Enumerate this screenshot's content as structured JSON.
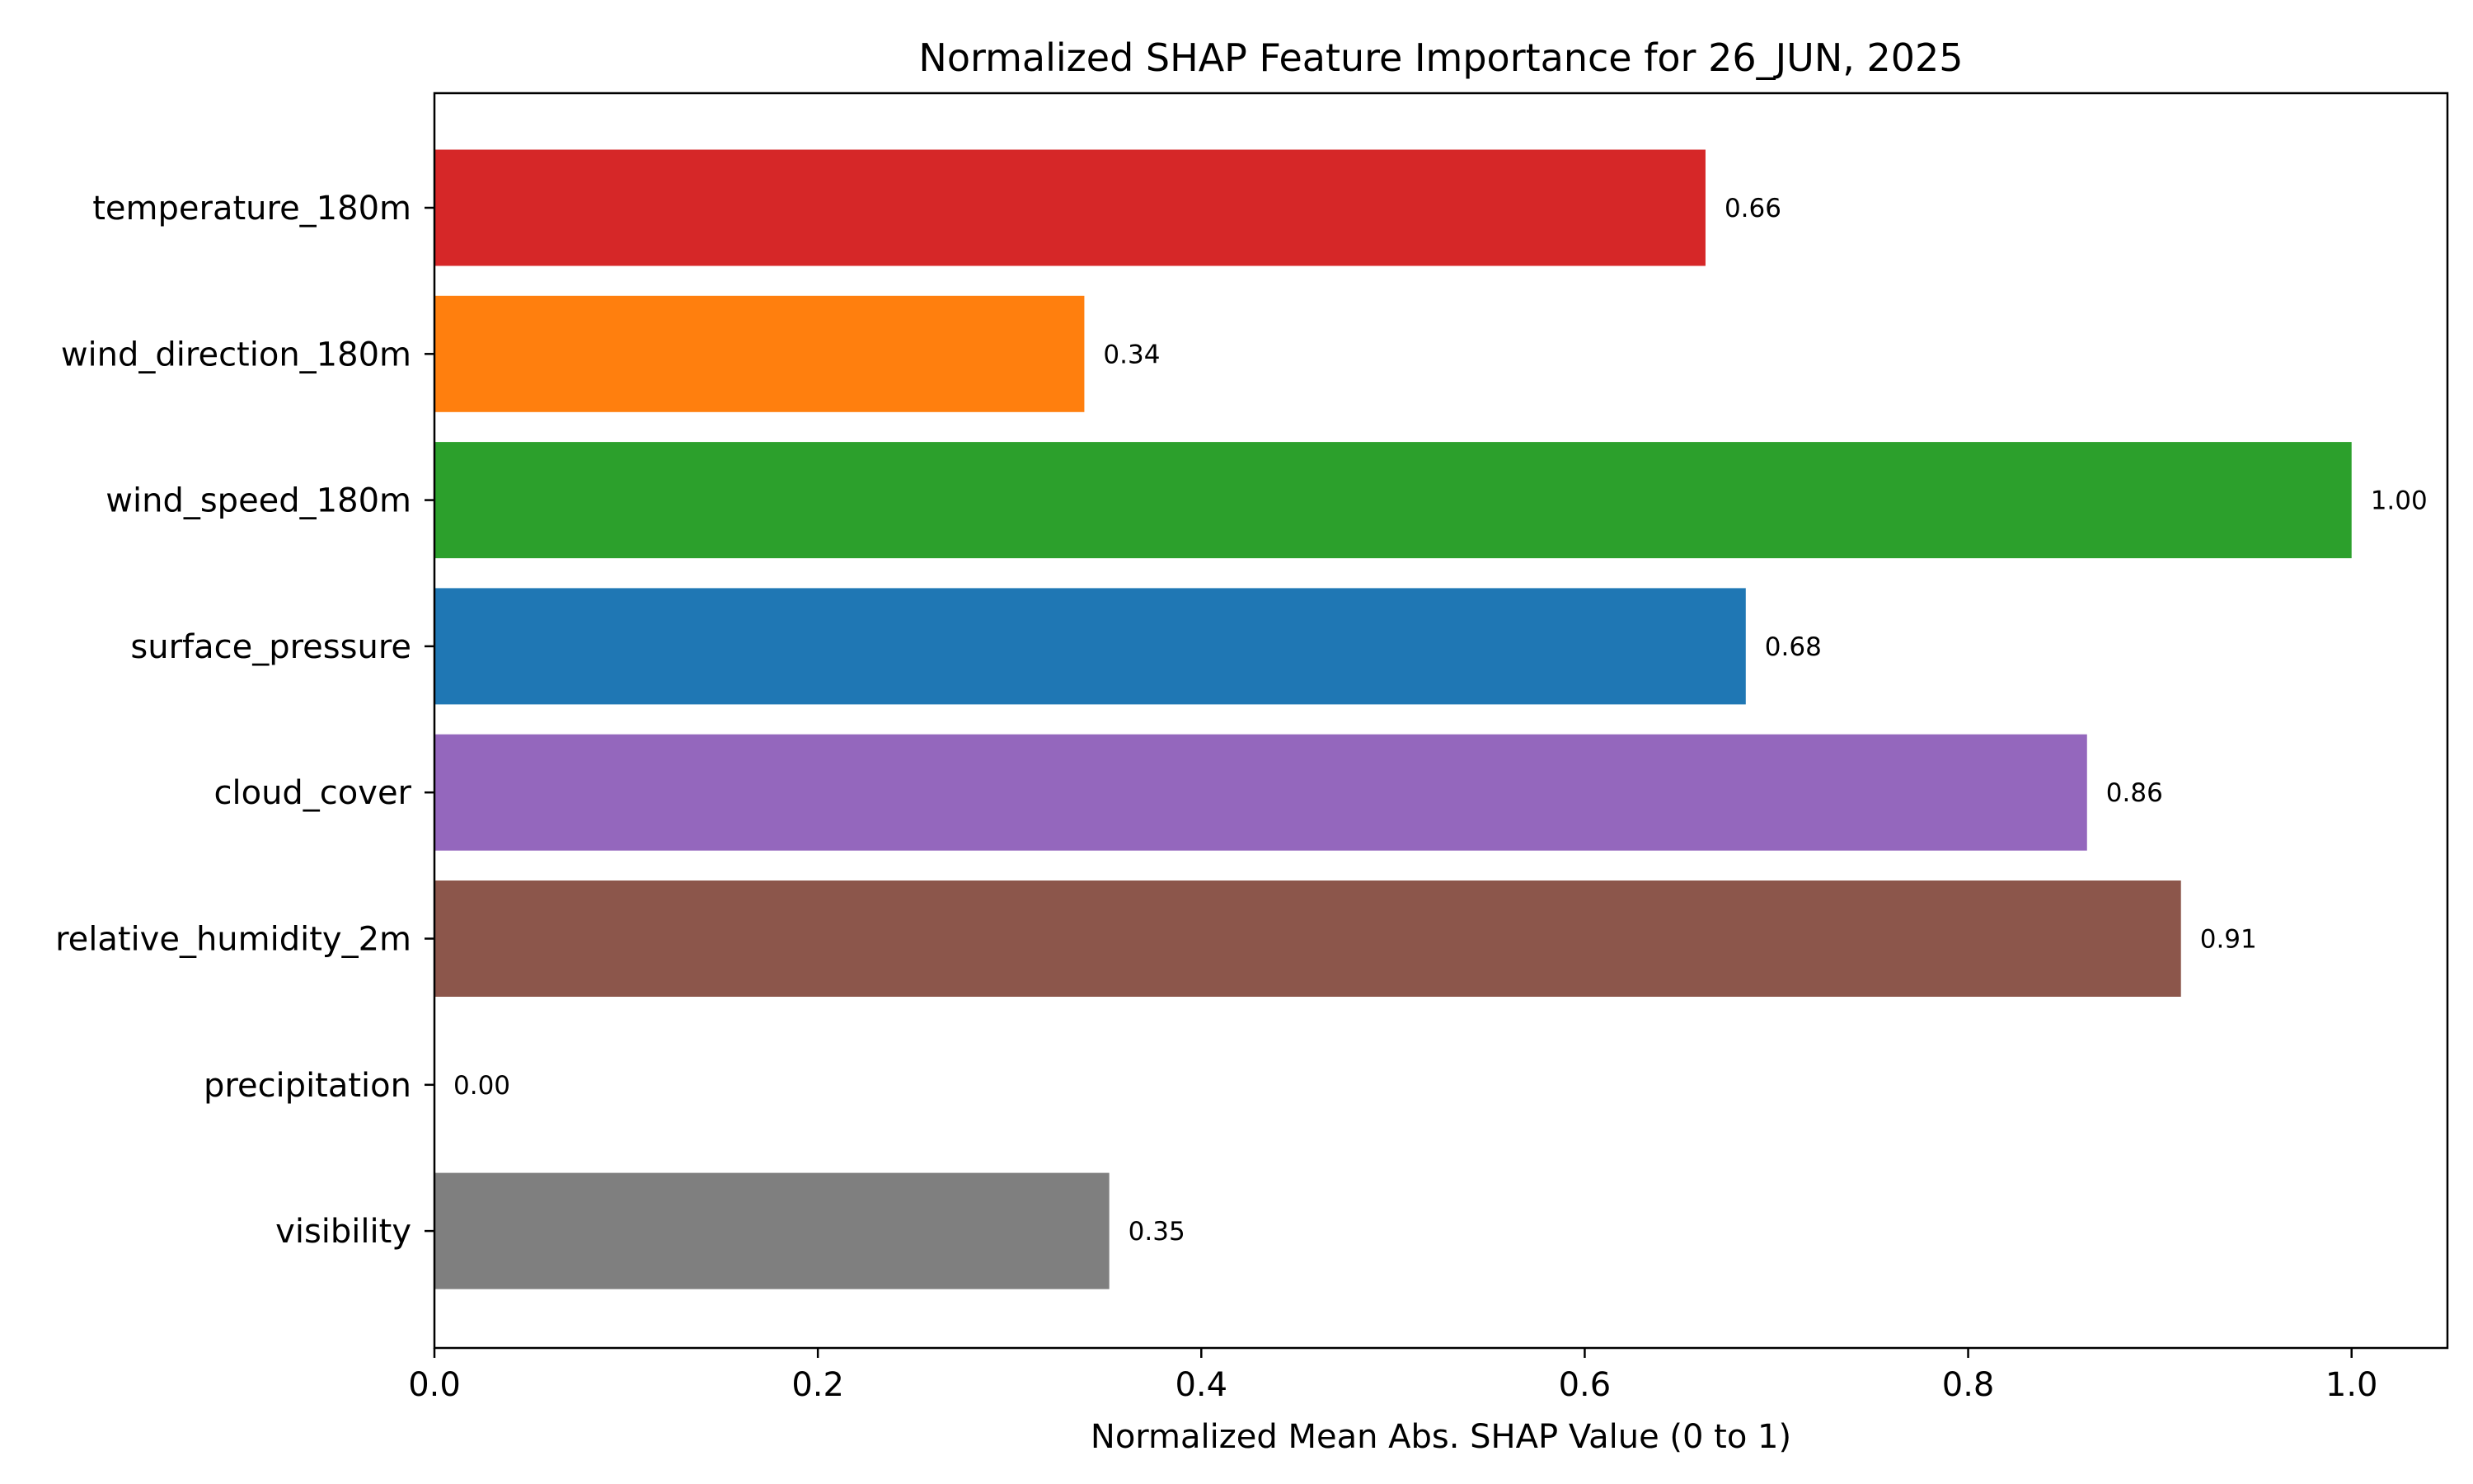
{
  "chart_data": {
    "type": "bar",
    "orientation": "horizontal",
    "title": "Normalized SHAP Feature Importance for 26_JUN, 2025",
    "xlabel": "Normalized Mean Abs. SHAP Value (0 to 1)",
    "ylabel": "",
    "xlim": [
      0,
      1.05
    ],
    "x_ticks": [
      "0.0",
      "0.2",
      "0.4",
      "0.6",
      "0.8",
      "1.0"
    ],
    "grid": false,
    "categories": [
      "temperature_180m",
      "wind_direction_180m",
      "wind_speed_180m",
      "surface_pressure",
      "cloud_cover",
      "relative_humidity_2m",
      "precipitation",
      "visibility"
    ],
    "values": [
      0.663,
      0.339,
      1.0,
      0.684,
      0.862,
      0.911,
      0.0,
      0.352
    ],
    "value_labels": [
      "0.66",
      "0.34",
      "1.00",
      "0.68",
      "0.86",
      "0.91",
      "0.00",
      "0.35"
    ],
    "colors": [
      "#d62728",
      "#ff7f0e",
      "#2ca02c",
      "#1f77b4",
      "#9467bd",
      "#8c564b",
      "#e377c2",
      "#7f7f7f"
    ]
  }
}
